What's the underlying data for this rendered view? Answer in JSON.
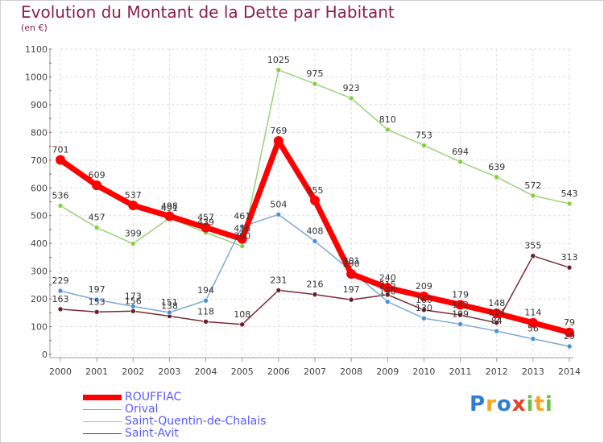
{
  "header": {
    "title": "Evolution du Montant de la Dette par Habitant",
    "subtitle": "(en €)"
  },
  "logo": {
    "text": "Proxiti",
    "letters": [
      {
        "char": "P",
        "color": "#2f7fd0"
      },
      {
        "char": "r",
        "color": "#f5a623"
      },
      {
        "char": "o",
        "color": "#2f7fd0"
      },
      {
        "char": "x",
        "color": "#e8412a"
      },
      {
        "char": "i",
        "color": "#6cc04a"
      },
      {
        "char": "t",
        "color": "#f5a623"
      },
      {
        "char": "i",
        "color": "#6cc04a"
      }
    ]
  },
  "chart_data": {
    "type": "line",
    "title": "Evolution du Montant de la Dette par Habitant",
    "subtitle": "(en €)",
    "xlabel": "",
    "ylabel": "",
    "x": [
      "2000",
      "2001",
      "2002",
      "2003",
      "2004",
      "2005",
      "2006",
      "2007",
      "2008",
      "2009",
      "2010",
      "2011",
      "2012",
      "2013",
      "2014"
    ],
    "ylim": [
      0,
      1100
    ],
    "yticks": [
      0,
      100,
      200,
      300,
      400,
      500,
      600,
      700,
      800,
      900,
      1000,
      1100
    ],
    "grid": true,
    "legend_position": "bottom-left",
    "series": [
      {
        "name": "ROUFFIAC",
        "color": "#ff0000",
        "line_color": "#ff0000",
        "width": "thick",
        "values": [
          701,
          609,
          537,
          498,
          457,
          416,
          769,
          555,
          290,
          240,
          209,
          179,
          148,
          114,
          79
        ],
        "labels": [
          "701",
          "609",
          "537",
          "498",
          "457",
          "416",
          "769",
          "555",
          "290",
          "240",
          "209",
          "179",
          "148",
          "114",
          "79"
        ]
      },
      {
        "name": "Orival",
        "color": "#4a90d9",
        "line_color": "#7ba7d4",
        "width": "thin",
        "values": [
          229,
          197,
          173,
          151,
          194,
          461,
          504,
          408,
          301,
          190,
          130,
          109,
          84,
          56,
          29
        ],
        "labels": [
          "229",
          "197",
          "173",
          "151",
          "194",
          "461",
          "504",
          "408",
          "301",
          "190",
          "130",
          "109",
          "84",
          "56",
          "29"
        ]
      },
      {
        "name": "Saint-Quentin-de-Chalais",
        "color": "#88cc44",
        "line_color": "#99d27a",
        "width": "thin",
        "values": [
          536,
          457,
          399,
          491,
          439,
          390,
          1025,
          975,
          923,
          810,
          753,
          694,
          639,
          572,
          543
        ],
        "labels": [
          "536",
          "457",
          "399",
          "491",
          "439",
          "390",
          "1025",
          "975",
          "923",
          "810",
          "753",
          "694",
          "639",
          "572",
          "543"
        ]
      },
      {
        "name": "Saint-Avit",
        "color": "#6b1f2a",
        "line_color": "#7a2a35",
        "width": "thin",
        "values": [
          163,
          153,
          156,
          138,
          118,
          108,
          231,
          216,
          197,
          215,
          160,
          142,
          114,
          355,
          313
        ],
        "labels": [
          "163",
          "153",
          "156",
          "138",
          "118",
          "108",
          "231",
          "216",
          "197",
          "215",
          "160",
          "142",
          "114",
          "355",
          "313"
        ]
      }
    ]
  }
}
